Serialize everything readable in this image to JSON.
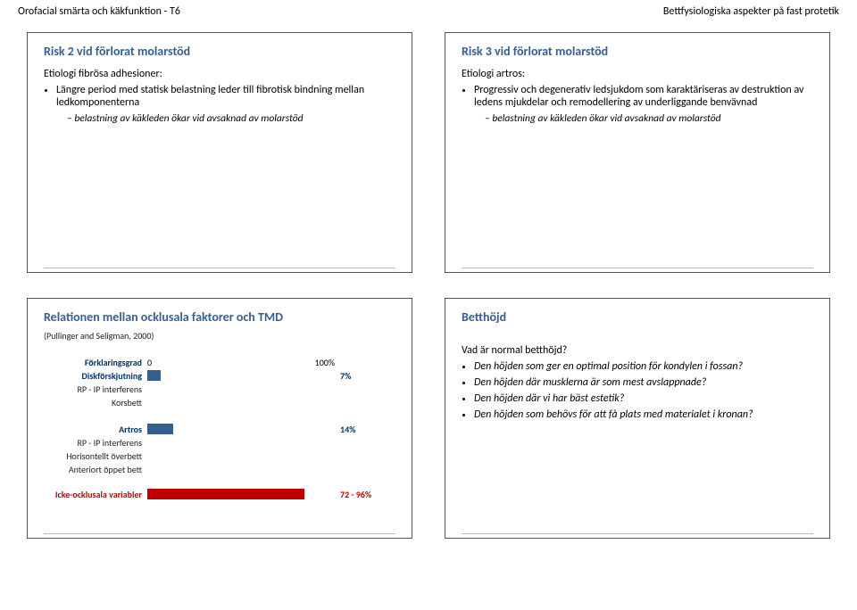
{
  "header": {
    "left": "Orofacial smärta och käkfunktion - T6",
    "right": "Bettfysiologiska aspekter på fast protetik"
  },
  "slide1": {
    "title": "Risk 2 vid förlorat molarstöd",
    "subhead": "Etiologi fibrösa adhesioner:",
    "bullet1": "Längre period med statisk belastning leder till fibrotisk bindning mellan ledkomponenterna",
    "note1": "belastning av käkleden ökar vid avsaknad av molarstöd"
  },
  "slide2": {
    "title": "Risk 3 vid förlorat molarstöd",
    "subhead": "Etiologi artros:",
    "bullet1": "Progressiv och degenerativ ledsjukdom som karaktäriseras av destruktion av ledens mjukdelar och remodellering av underliggande benvävnad",
    "note1": "belastning av käkleden ökar vid avsaknad av molarstöd"
  },
  "slide3": {
    "title": "Relationen mellan ocklusala faktorer och TMD",
    "citation": "(Pullinger and Seligman, 2000)",
    "chart": {
      "axis_label": "Förklaringsgrad",
      "axis_min": "0",
      "axis_max": "100%",
      "bar_color": "#365f91",
      "rows": [
        {
          "label": "Diskförskjutning",
          "value_pct": 7,
          "value_text": "7%",
          "is_main": true
        },
        {
          "label": "RP - IP interferens",
          "is_main": false
        },
        {
          "label": "Korsbett",
          "is_main": false
        },
        {
          "label": "",
          "is_main": false
        },
        {
          "label": "Artros",
          "value_pct": 14,
          "value_text": "14%",
          "is_main": true
        },
        {
          "label": "RP - IP interferens",
          "is_main": false
        },
        {
          "label": "Horisontellt överbett",
          "is_main": false
        },
        {
          "label": "Anteriort öppet bett",
          "is_main": false
        }
      ],
      "nonocc_label": "Icke-ocklusala variabler",
      "nonocc_pct": 84,
      "nonocc_text": "72 - 96%"
    }
  },
  "slide4": {
    "title": "Betthöjd",
    "subhead": "Vad är normal betthöjd?",
    "bullets": {
      "b1": "Den höjden som ger en optimal position för kondylen i fossan?",
      "b2": "Den höjden där musklerna är som mest avslappnade?",
      "b3": "Den höjden där vi har bäst estetik?",
      "b4": "Den höjden som behövs för att få plats med materialet i kronan?"
    }
  }
}
